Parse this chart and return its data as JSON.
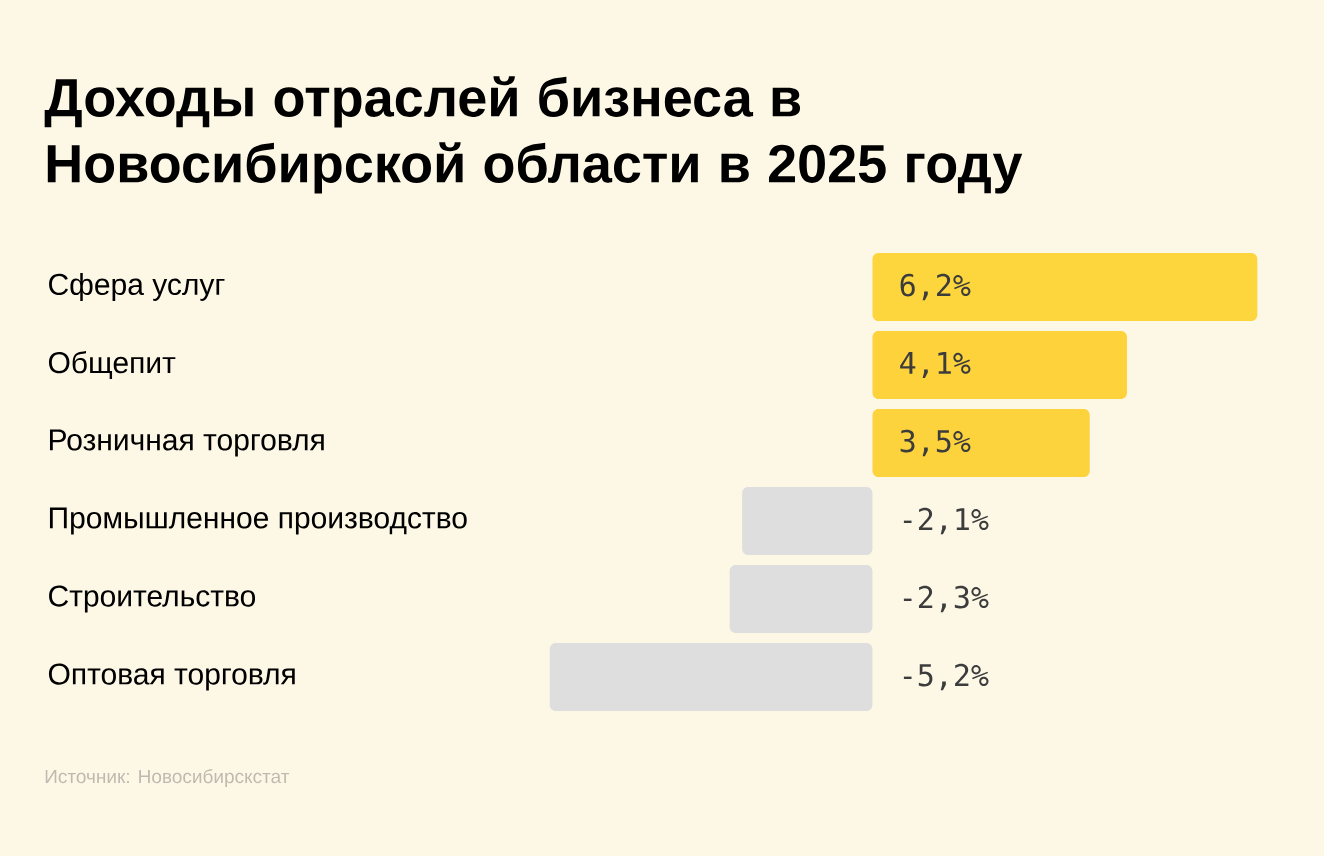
{
  "chart_data": {
    "type": "bar",
    "orientation": "horizontal",
    "title": "Доходы отраслей бизнеса в Новосибирской области в 2025 году",
    "categories": [
      "Сфера услуг",
      "Общепит",
      "Розничная торговля",
      "Промышленное производство",
      "Строительство",
      "Оптовая торговля"
    ],
    "values": [
      6.2,
      4.1,
      3.5,
      -2.1,
      -2.3,
      -5.2
    ],
    "value_labels": [
      "6,2%",
      "4,1%",
      "3,5%",
      "-2,1%",
      "-2,3%",
      "-5,2%"
    ],
    "colors": [
      "#fdd53c",
      "#fdd23b",
      "#fdd33d",
      "#dedede",
      "#dedede",
      "#dedede"
    ],
    "annotations": [
      "Источник: Новосибирскстат"
    ]
  }
}
